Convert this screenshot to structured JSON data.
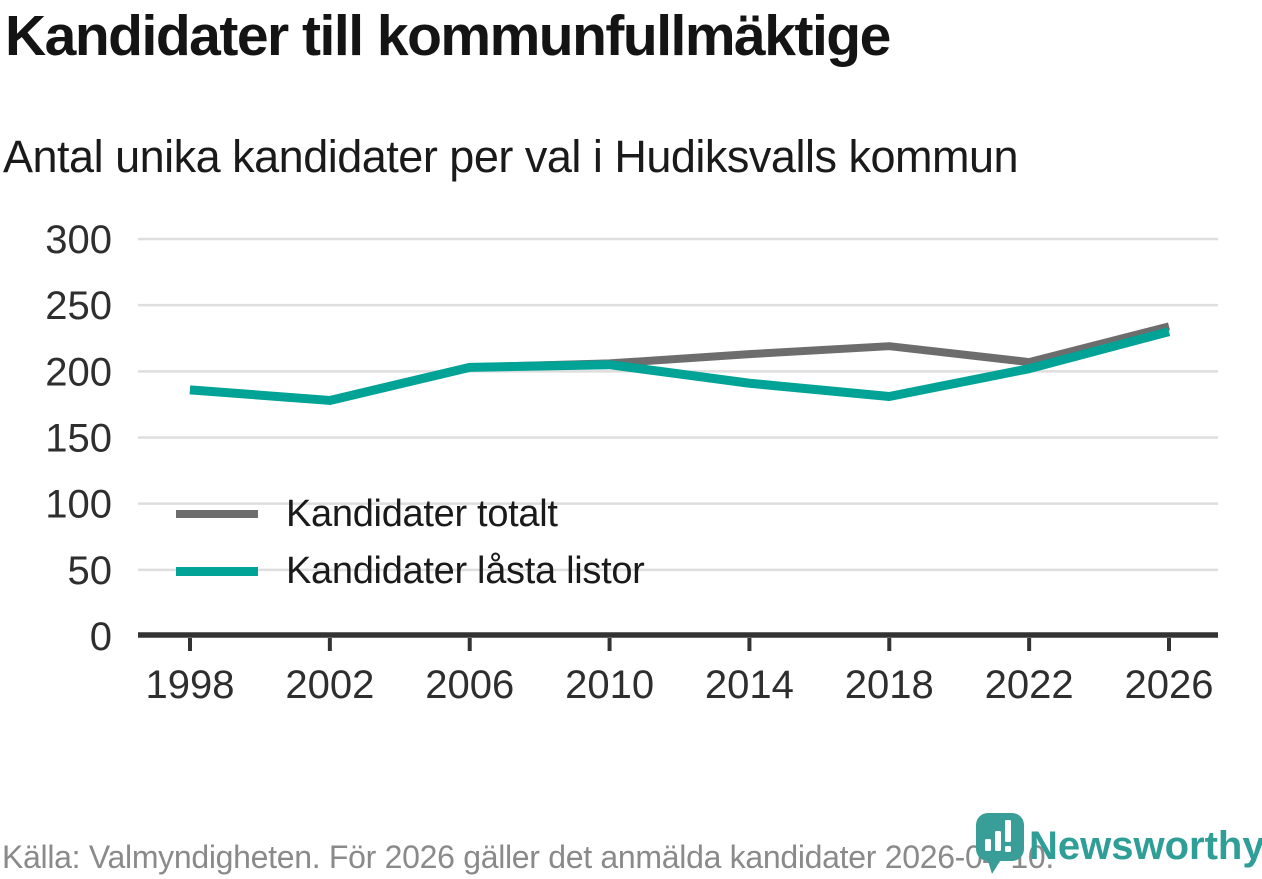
{
  "header": {
    "title": "Kandidater till kommunfullmäktige",
    "subtitle": "Antal unika kandidater per val i Hudiksvalls kommun"
  },
  "chart_data": {
    "type": "line",
    "x": [
      1998,
      2002,
      2006,
      2010,
      2014,
      2018,
      2022,
      2026
    ],
    "series": [
      {
        "name": "Kandidater totalt",
        "color": "#6d6d6d",
        "stroke_width": 8,
        "values": [
          186,
          178,
          203,
          206,
          213,
          219,
          207,
          234
        ]
      },
      {
        "name": "Kandidater låsta listor",
        "color": "#00a396",
        "stroke_width": 9,
        "values": [
          186,
          178,
          203,
          205,
          191,
          181,
          202,
          230
        ]
      }
    ],
    "ylim": [
      0,
      300
    ],
    "yticks": [
      0,
      50,
      100,
      150,
      200,
      250,
      300
    ],
    "xticks": [
      1998,
      2002,
      2006,
      2010,
      2014,
      2018,
      2022,
      2026
    ],
    "grid": "horizontal",
    "legend_position": "inside-left",
    "title": "Kandidater till kommunfullmäktige",
    "xlabel": "",
    "ylabel": ""
  },
  "footer": {
    "source_note": "Källa: Valmyndigheten. För 2026 gäller det anmälda kandidater 2026-04-10."
  },
  "brand": {
    "name": "Newsworthy"
  },
  "colors": {
    "grid": "#dedede",
    "axis": "#333333",
    "tick_text": "#2e2e2e",
    "brand_teal": "#2f9e97",
    "icon_teal": "#3a9e98"
  }
}
